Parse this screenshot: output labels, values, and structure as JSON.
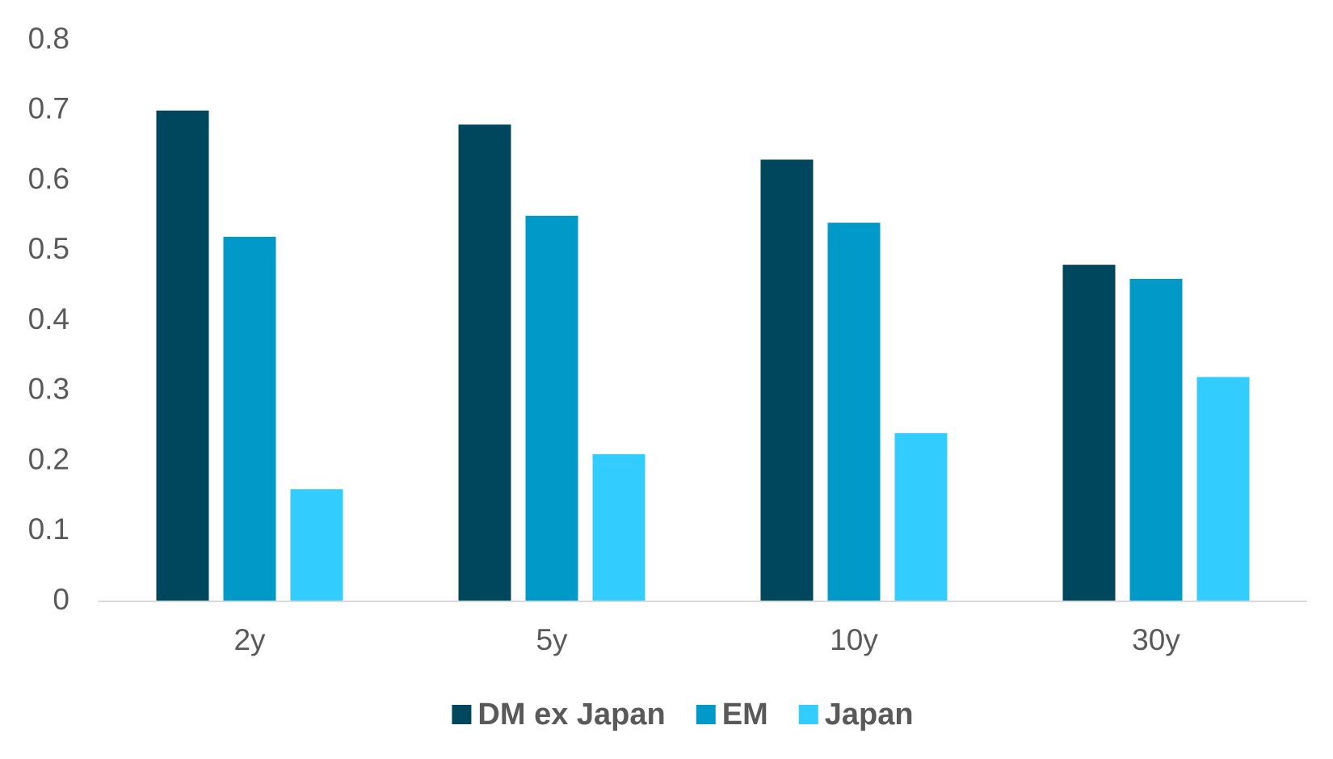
{
  "chart_data": {
    "type": "bar",
    "categories": [
      "2y",
      "5y",
      "10y",
      "30y"
    ],
    "series": [
      {
        "name": "DM ex Japan",
        "color": "#00475e",
        "values": [
          0.7,
          0.68,
          0.63,
          0.48
        ]
      },
      {
        "name": "EM",
        "color": "#0099c8",
        "values": [
          0.52,
          0.55,
          0.54,
          0.46
        ]
      },
      {
        "name": "Japan",
        "color": "#33ccff",
        "values": [
          0.16,
          0.21,
          0.24,
          0.32
        ]
      }
    ],
    "ylim": [
      0,
      0.8
    ],
    "yticks": [
      0,
      0.1,
      0.2,
      0.3,
      0.4,
      0.5,
      0.6,
      0.7,
      0.8
    ],
    "grid": false,
    "legend": "bottom"
  }
}
